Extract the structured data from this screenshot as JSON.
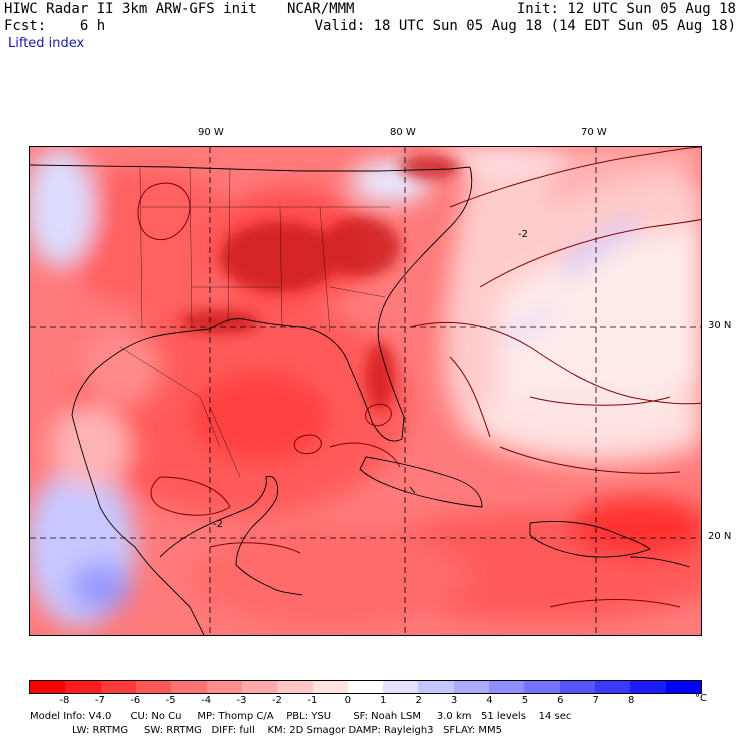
{
  "header": {
    "title": "HIWC Radar II 3km ARW-GFS init",
    "org": "NCAR/MMM",
    "init": "Init: 12 UTC Sun 05 Aug 18",
    "fcst": "Fcst:    6 h",
    "valid": "Valid: 18 UTC Sun 05 Aug 18 (14 EDT Sun 05 Aug 18)",
    "field": "Lifted index"
  },
  "map": {
    "lon_labels": [
      "90 W",
      "80 W",
      "70 W"
    ],
    "lat_labels": [
      "30 N",
      "20 N"
    ],
    "contour_labels": [
      "-2",
      "-2"
    ]
  },
  "legend": {
    "colors": [
      "#ff0000",
      "#ff1c1c",
      "#ff3a3a",
      "#ff5656",
      "#ff7373",
      "#ff8f8f",
      "#ffaaaa",
      "#ffc6c6",
      "#ffe2e2",
      "#ffffff",
      "#e2e2ff",
      "#c6c6ff",
      "#aaaaff",
      "#8f8fff",
      "#7373ff",
      "#5656ff",
      "#3a3aff",
      "#1c1cff",
      "#0000ff"
    ],
    "tick_labels": [
      "-8",
      "-7",
      "-6",
      "-5",
      "-4",
      "-3",
      "-2",
      "-1",
      "0",
      "1",
      "2",
      "3",
      "4",
      "5",
      "6",
      "7",
      "8"
    ],
    "unit": "°C"
  },
  "footer": {
    "line1": "Model Info: V4.0      CU: No Cu     MP: Thomp C/A    PBL: YSU       SF: Noah LSM     3.0 km   51 levels    14 sec",
    "line2": "LW: RRTMG     SW: RRTMG   DIFF: full    KM: 2D Smagor DAMP: Rayleigh3   SFLAY: MM5"
  }
}
